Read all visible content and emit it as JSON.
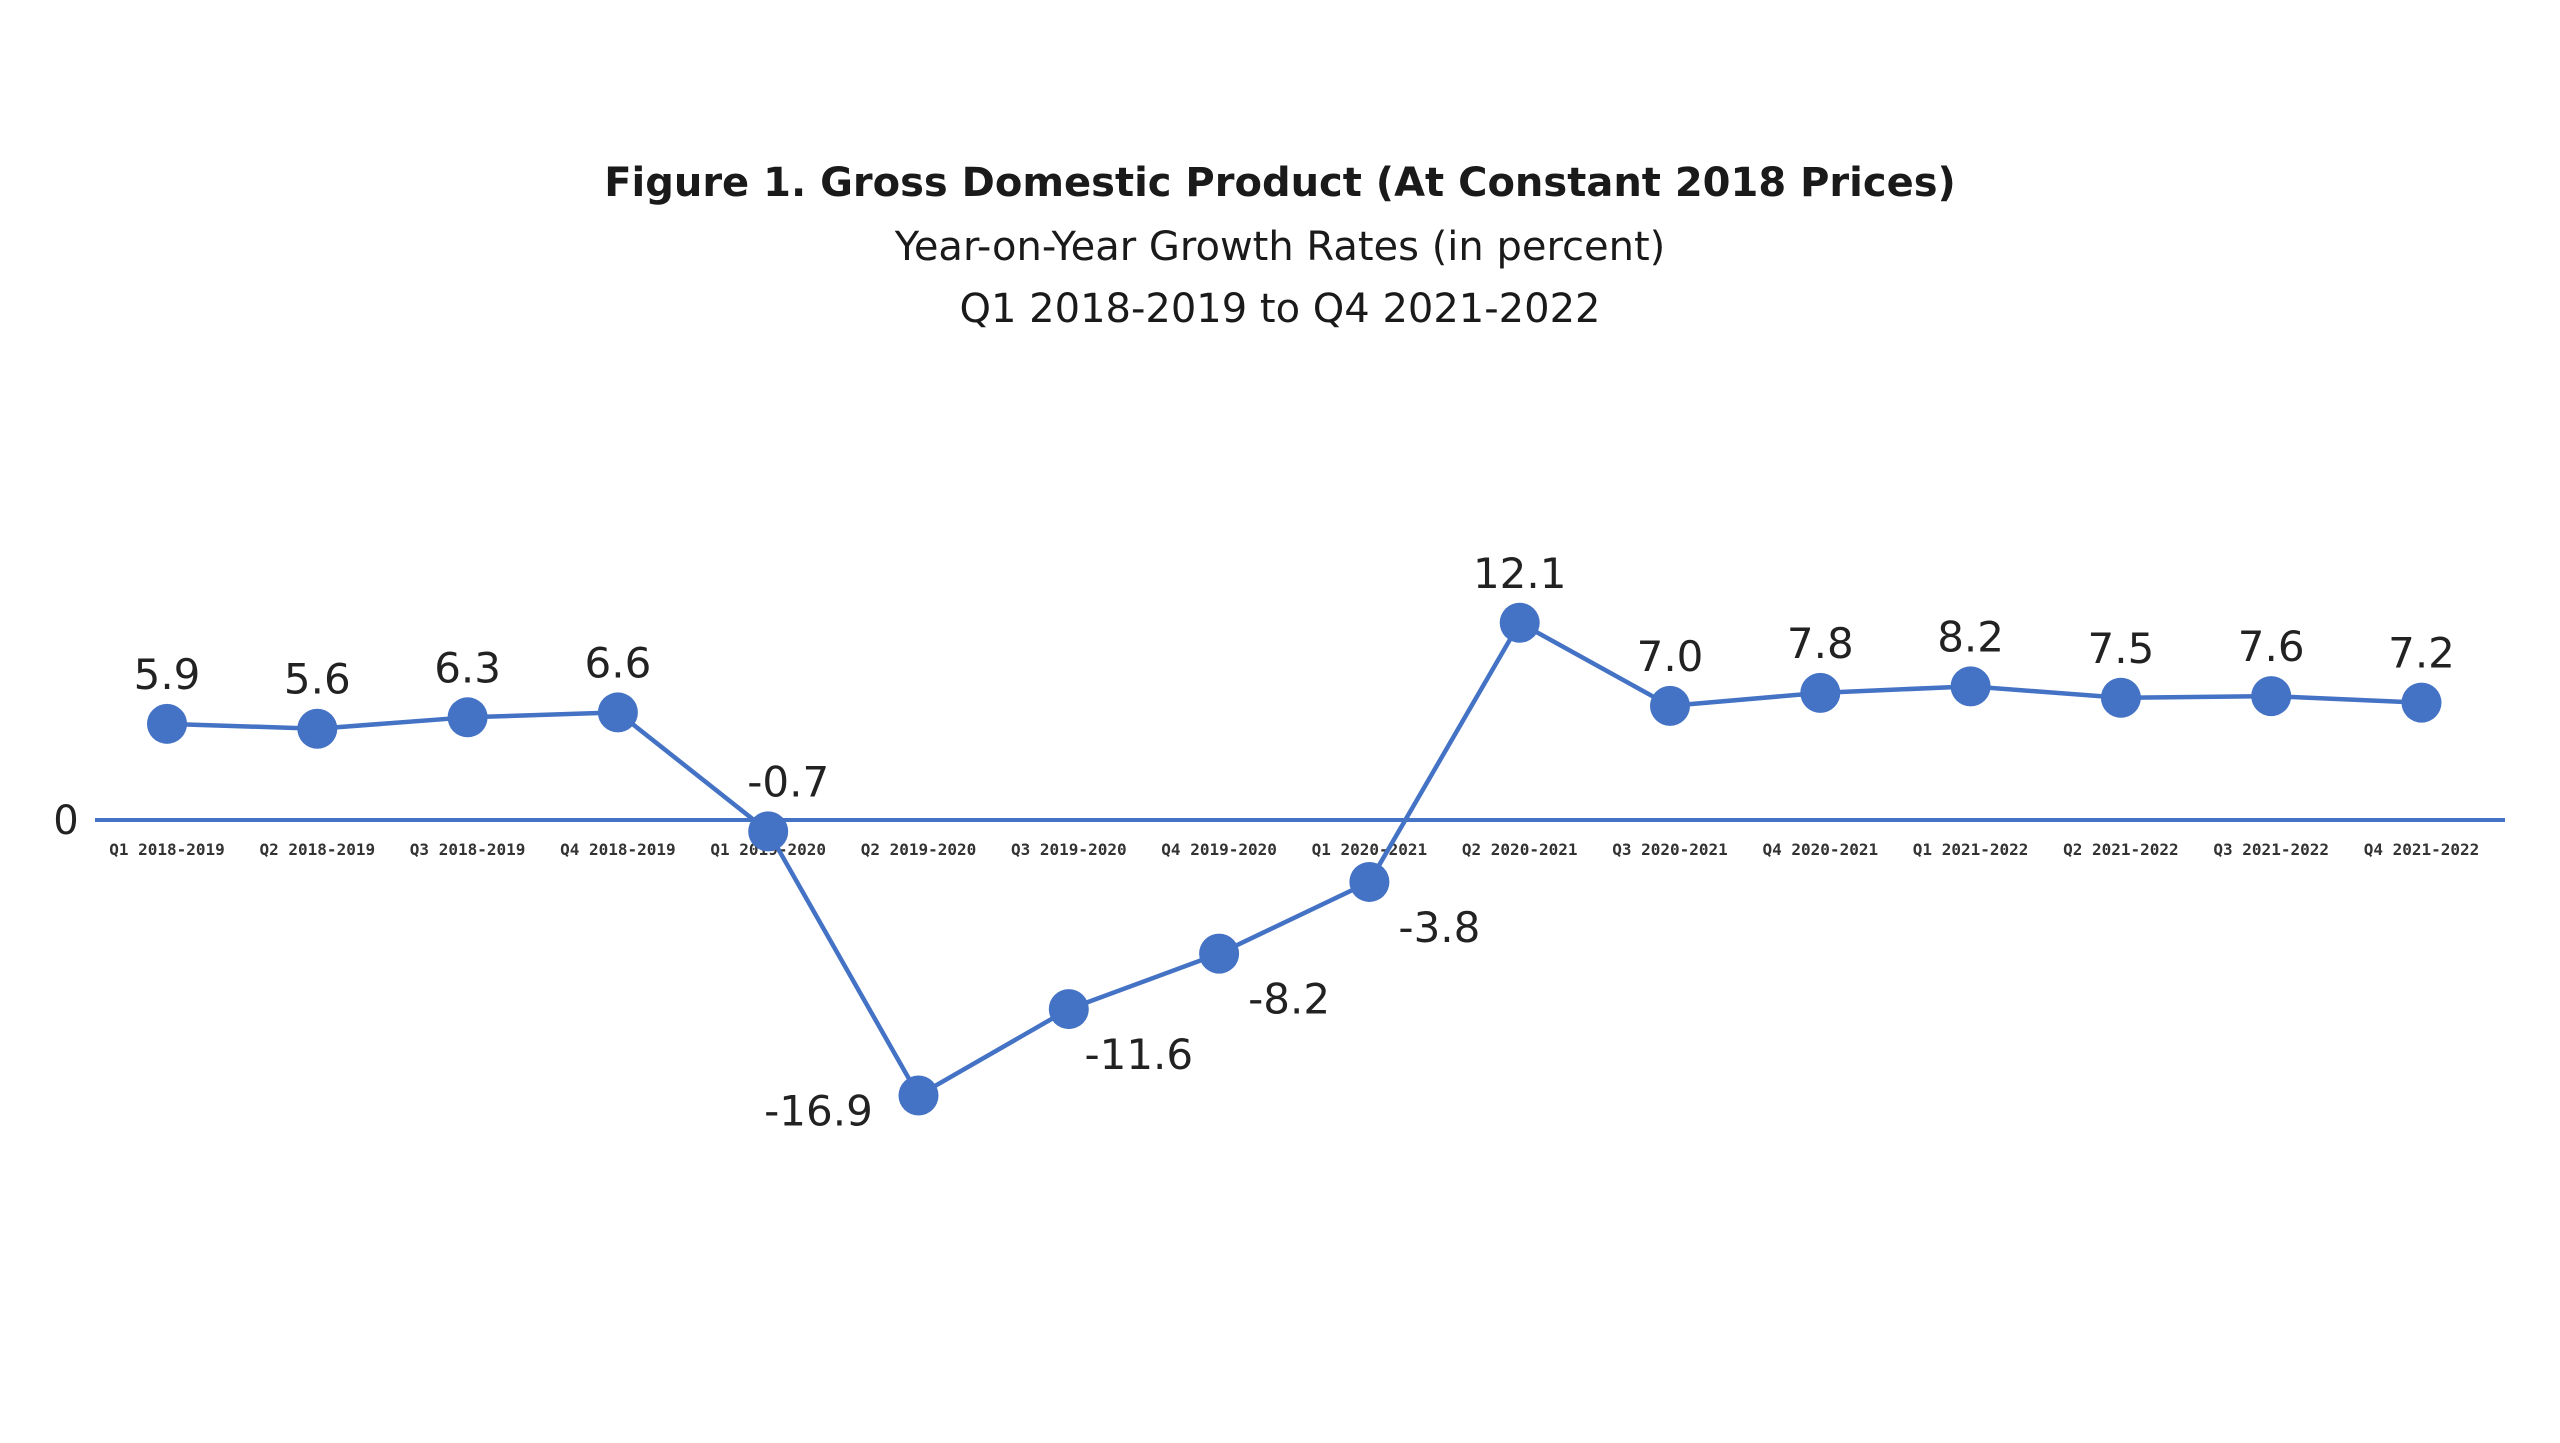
{
  "chart_data": {
    "type": "line",
    "title": "Figure 1. Gross Domestic Product (At Constant 2018 Prices)",
    "subtitle": "Year-on-Year Growth Rates (in percent)",
    "subtitle2": "Q1 2018-2019 to Q4 2021-2022",
    "zero_label": "0",
    "categories": [
      "Q1 2018-2019",
      "Q2 2018-2019",
      "Q3 2018-2019",
      "Q4 2018-2019",
      "Q1 2019-2020",
      "Q2 2019-2020",
      "Q3 2019-2020",
      "Q4 2019-2020",
      "Q1 2020-2021",
      "Q2 2020-2021",
      "Q3 2020-2021",
      "Q4 2020-2021",
      "Q1 2021-2022",
      "Q2 2021-2022",
      "Q3 2021-2022",
      "Q4 2021-2022"
    ],
    "values": [
      5.9,
      5.6,
      6.3,
      6.6,
      -0.7,
      -16.9,
      -11.6,
      -8.2,
      -3.8,
      12.1,
      7.0,
      7.8,
      8.2,
      7.5,
      7.6,
      7.2
    ],
    "value_labels": [
      "5.9",
      "5.6",
      "6.3",
      "6.6",
      "-0.7",
      "-16.9",
      "-11.6",
      "-8.2",
      "-3.8",
      "12.1",
      "7.0",
      "7.8",
      "8.2",
      "7.5",
      "7.6",
      "7.2"
    ],
    "line_color": "#4472c4",
    "grid": false,
    "legend": "none"
  }
}
